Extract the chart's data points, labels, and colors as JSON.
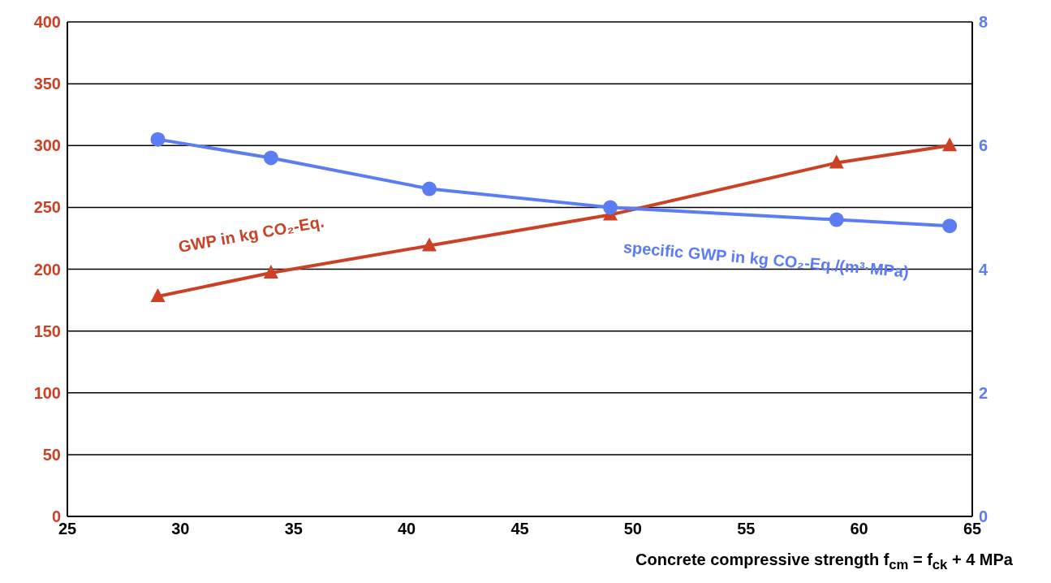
{
  "chart_data": {
    "type": "line",
    "xlabel": "Concrete compressive strength f$_{cm}$ = f$_{ck}$ + 4 MPa",
    "x": [
      29,
      34,
      41,
      49,
      59,
      64
    ],
    "series": [
      {
        "name": "GWP in kg CO₂-Eq.",
        "color": "#cc4125",
        "values": [
          178,
          197,
          219,
          244,
          286,
          300
        ],
        "marker": "triangle"
      },
      {
        "name": "specific GWP in kg CO₂-Eq./(m³·MPa)",
        "color": "#5b7cf2",
        "values": [
          6.1,
          5.8,
          5.3,
          5.0,
          4.8,
          4.7
        ],
        "axis": "y2",
        "marker": "circle"
      }
    ],
    "xlim": [
      25,
      65
    ],
    "xticks": [
      25,
      30,
      35,
      40,
      45,
      50,
      55,
      60,
      65
    ],
    "ylim": [
      0,
      400
    ],
    "yticks": [
      0,
      50,
      100,
      150,
      200,
      250,
      300,
      350,
      400
    ],
    "y2lim": [
      0,
      8
    ],
    "y2ticks": [
      0,
      2,
      4,
      6,
      8
    ],
    "grid": "y",
    "legend": false,
    "line_style": "solid"
  }
}
